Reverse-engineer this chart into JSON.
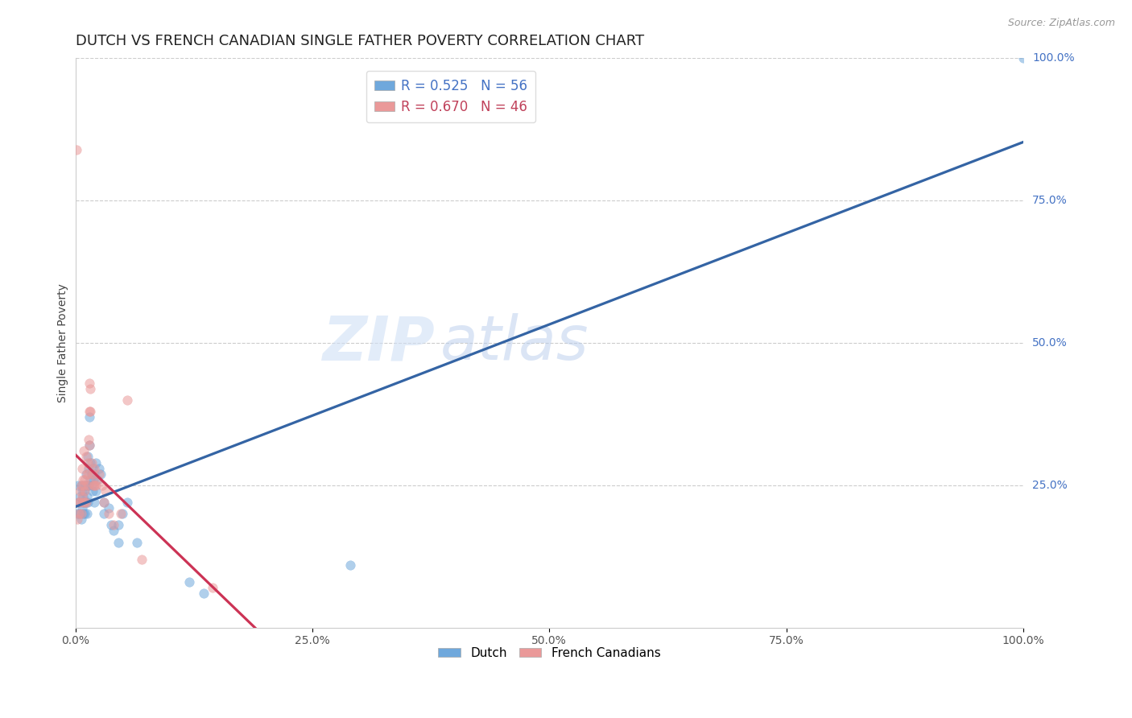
{
  "title": "DUTCH VS FRENCH CANADIAN SINGLE FATHER POVERTY CORRELATION CHART",
  "source": "Source: ZipAtlas.com",
  "ylabel": "Single Father Poverty",
  "watermark_zip": "ZIP",
  "watermark_atlas": "atlas",
  "dutch_R": 0.525,
  "dutch_N": 56,
  "french_R": 0.67,
  "french_N": 46,
  "dutch_color": "#6fa8dc",
  "french_color": "#ea9999",
  "dutch_line_color": "#3464a4",
  "french_line_color": "#cc3355",
  "dutch_points": [
    [
      0.002,
      0.2
    ],
    [
      0.003,
      0.25
    ],
    [
      0.004,
      0.22
    ],
    [
      0.005,
      0.2
    ],
    [
      0.005,
      0.23
    ],
    [
      0.006,
      0.19
    ],
    [
      0.006,
      0.25
    ],
    [
      0.007,
      0.21
    ],
    [
      0.007,
      0.24
    ],
    [
      0.007,
      0.22
    ],
    [
      0.008,
      0.2
    ],
    [
      0.008,
      0.23
    ],
    [
      0.009,
      0.22
    ],
    [
      0.009,
      0.24
    ],
    [
      0.01,
      0.25
    ],
    [
      0.01,
      0.2
    ],
    [
      0.01,
      0.22
    ],
    [
      0.011,
      0.27
    ],
    [
      0.011,
      0.22
    ],
    [
      0.012,
      0.23
    ],
    [
      0.012,
      0.25
    ],
    [
      0.012,
      0.2
    ],
    [
      0.013,
      0.3
    ],
    [
      0.013,
      0.22
    ],
    [
      0.014,
      0.28
    ],
    [
      0.014,
      0.25
    ],
    [
      0.015,
      0.37
    ],
    [
      0.015,
      0.32
    ],
    [
      0.016,
      0.26
    ],
    [
      0.016,
      0.29
    ],
    [
      0.017,
      0.27
    ],
    [
      0.017,
      0.25
    ],
    [
      0.018,
      0.28
    ],
    [
      0.018,
      0.24
    ],
    [
      0.019,
      0.26
    ],
    [
      0.02,
      0.27
    ],
    [
      0.02,
      0.22
    ],
    [
      0.022,
      0.29
    ],
    [
      0.022,
      0.24
    ],
    [
      0.023,
      0.26
    ],
    [
      0.025,
      0.28
    ],
    [
      0.027,
      0.27
    ],
    [
      0.03,
      0.22
    ],
    [
      0.03,
      0.2
    ],
    [
      0.035,
      0.21
    ],
    [
      0.038,
      0.18
    ],
    [
      0.04,
      0.17
    ],
    [
      0.045,
      0.15
    ],
    [
      0.045,
      0.18
    ],
    [
      0.05,
      0.2
    ],
    [
      0.055,
      0.22
    ],
    [
      0.065,
      0.15
    ],
    [
      0.12,
      0.08
    ],
    [
      0.135,
      0.06
    ],
    [
      0.29,
      0.11
    ],
    [
      1.0,
      1.0
    ]
  ],
  "french_points": [
    [
      0.001,
      0.84
    ],
    [
      0.002,
      0.19
    ],
    [
      0.003,
      0.22
    ],
    [
      0.004,
      0.2
    ],
    [
      0.005,
      0.24
    ],
    [
      0.005,
      0.22
    ],
    [
      0.006,
      0.2
    ],
    [
      0.006,
      0.25
    ],
    [
      0.007,
      0.28
    ],
    [
      0.007,
      0.23
    ],
    [
      0.008,
      0.26
    ],
    [
      0.008,
      0.22
    ],
    [
      0.009,
      0.25
    ],
    [
      0.009,
      0.31
    ],
    [
      0.01,
      0.24
    ],
    [
      0.01,
      0.22
    ],
    [
      0.01,
      0.26
    ],
    [
      0.011,
      0.3
    ],
    [
      0.011,
      0.22
    ],
    [
      0.012,
      0.27
    ],
    [
      0.013,
      0.29
    ],
    [
      0.013,
      0.25
    ],
    [
      0.014,
      0.33
    ],
    [
      0.014,
      0.27
    ],
    [
      0.015,
      0.43
    ],
    [
      0.015,
      0.38
    ],
    [
      0.015,
      0.32
    ],
    [
      0.016,
      0.42
    ],
    [
      0.016,
      0.38
    ],
    [
      0.017,
      0.29
    ],
    [
      0.018,
      0.27
    ],
    [
      0.019,
      0.25
    ],
    [
      0.02,
      0.28
    ],
    [
      0.02,
      0.25
    ],
    [
      0.022,
      0.26
    ],
    [
      0.022,
      0.25
    ],
    [
      0.025,
      0.27
    ],
    [
      0.028,
      0.25
    ],
    [
      0.03,
      0.22
    ],
    [
      0.032,
      0.24
    ],
    [
      0.035,
      0.2
    ],
    [
      0.04,
      0.18
    ],
    [
      0.048,
      0.2
    ],
    [
      0.055,
      0.4
    ],
    [
      0.07,
      0.12
    ],
    [
      0.145,
      0.07
    ]
  ],
  "xlim": [
    0.0,
    1.0
  ],
  "ylim": [
    0.0,
    1.0
  ],
  "xtick_vals": [
    0.0,
    0.25,
    0.5,
    0.75,
    1.0
  ],
  "xtick_labels": [
    "0.0%",
    "25.0%",
    "50.0%",
    "75.0%",
    "100.0%"
  ],
  "ytick_right_vals": [
    0.25,
    0.5,
    0.75,
    1.0
  ],
  "ytick_right_labels": [
    "25.0%",
    "50.0%",
    "75.0%",
    "100.0%"
  ],
  "background_color": "#ffffff",
  "title_fontsize": 13,
  "marker_size": 70,
  "marker_alpha": 0.55,
  "line_width": 2.0
}
